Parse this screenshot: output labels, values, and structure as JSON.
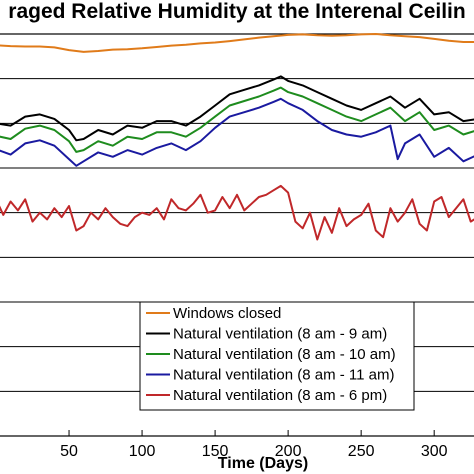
{
  "chart_data": {
    "type": "line",
    "title": "raged Relative Humidity at the Interenal Ceilin",
    "xlabel": "Time (Days)",
    "ylabel": "",
    "xlim": [
      0,
      330
    ],
    "ylim": [
      0,
      9
    ],
    "grid": "horizontal",
    "xticks": [
      50,
      100,
      150,
      200,
      250,
      300
    ],
    "xtick_labels": [
      "50",
      "100",
      "150",
      "200",
      "250",
      "300"
    ],
    "legend_position": "bottom-center",
    "series": [
      {
        "name": "Windows closed",
        "color": "#E07B1A",
        "x": [
          0,
          10,
          20,
          30,
          40,
          50,
          60,
          70,
          80,
          90,
          100,
          110,
          120,
          130,
          140,
          150,
          160,
          170,
          180,
          190,
          200,
          210,
          220,
          230,
          240,
          250,
          260,
          270,
          280,
          290,
          300,
          310,
          320,
          330
        ],
        "values": [
          8.75,
          8.73,
          8.72,
          8.72,
          8.7,
          8.64,
          8.6,
          8.62,
          8.65,
          8.66,
          8.68,
          8.71,
          8.74,
          8.76,
          8.79,
          8.81,
          8.84,
          8.88,
          8.92,
          8.95,
          8.98,
          8.99,
          8.97,
          8.96,
          8.97,
          8.99,
          9.0,
          8.97,
          8.95,
          8.93,
          8.89,
          8.85,
          8.82,
          8.82
        ]
      },
      {
        "name": "Natural ventilation (8 am - 9 am)",
        "color": "#000000",
        "x": [
          0,
          10,
          20,
          30,
          40,
          50,
          55,
          60,
          70,
          80,
          90,
          100,
          110,
          120,
          130,
          140,
          150,
          160,
          170,
          180,
          190,
          195,
          200,
          210,
          220,
          230,
          240,
          250,
          260,
          270,
          280,
          290,
          300,
          310,
          320,
          330
        ],
        "values": [
          7.0,
          6.95,
          7.15,
          7.2,
          7.1,
          6.85,
          6.62,
          6.65,
          6.85,
          6.75,
          6.95,
          6.9,
          7.05,
          7.05,
          6.95,
          7.15,
          7.4,
          7.65,
          7.75,
          7.85,
          7.98,
          8.05,
          7.95,
          7.85,
          7.7,
          7.55,
          7.4,
          7.3,
          7.45,
          7.6,
          7.35,
          7.55,
          7.2,
          7.25,
          7.05,
          7.1
        ]
      },
      {
        "name": "Natural ventilation (8 am - 10 am)",
        "color": "#1E8C1E",
        "x": [
          0,
          10,
          20,
          30,
          40,
          50,
          55,
          60,
          70,
          80,
          90,
          100,
          110,
          120,
          130,
          140,
          150,
          160,
          170,
          180,
          190,
          195,
          200,
          210,
          220,
          230,
          240,
          250,
          260,
          270,
          280,
          290,
          300,
          310,
          320,
          330
        ],
        "values": [
          6.72,
          6.65,
          6.88,
          6.95,
          6.85,
          6.6,
          6.36,
          6.4,
          6.6,
          6.5,
          6.7,
          6.65,
          6.8,
          6.8,
          6.7,
          6.9,
          7.15,
          7.4,
          7.5,
          7.6,
          7.73,
          7.8,
          7.7,
          7.6,
          7.45,
          7.3,
          7.15,
          7.05,
          7.2,
          7.35,
          7.05,
          7.25,
          6.85,
          6.95,
          6.75,
          6.85
        ]
      },
      {
        "name": "Natural ventilation (8 am - 11 am)",
        "color": "#1A1AA0",
        "x": [
          0,
          10,
          20,
          30,
          40,
          50,
          55,
          60,
          70,
          80,
          90,
          100,
          110,
          120,
          130,
          140,
          150,
          160,
          170,
          180,
          190,
          195,
          200,
          210,
          220,
          230,
          240,
          250,
          260,
          270,
          275,
          280,
          290,
          300,
          310,
          320,
          330
        ],
        "values": [
          6.42,
          6.3,
          6.55,
          6.62,
          6.5,
          6.2,
          6.05,
          6.15,
          6.35,
          6.25,
          6.4,
          6.3,
          6.45,
          6.55,
          6.4,
          6.6,
          6.9,
          7.15,
          7.25,
          7.35,
          7.48,
          7.55,
          7.45,
          7.3,
          7.05,
          6.85,
          6.75,
          6.7,
          6.8,
          6.95,
          6.2,
          6.55,
          6.75,
          6.25,
          6.45,
          6.15,
          6.3
        ]
      },
      {
        "name": "Natural ventilation (8 am - 6 pm)",
        "color": "#C0282A",
        "x": [
          0,
          5,
          10,
          15,
          20,
          25,
          30,
          35,
          40,
          45,
          50,
          55,
          60,
          65,
          70,
          75,
          80,
          85,
          90,
          95,
          100,
          105,
          110,
          115,
          120,
          125,
          130,
          135,
          140,
          145,
          150,
          155,
          160,
          165,
          170,
          175,
          180,
          185,
          190,
          195,
          200,
          205,
          210,
          215,
          220,
          225,
          230,
          235,
          240,
          245,
          250,
          255,
          260,
          265,
          270,
          275,
          280,
          285,
          290,
          295,
          300,
          305,
          310,
          315,
          320,
          325,
          330
        ],
        "values": [
          5.3,
          4.95,
          5.25,
          5.05,
          5.3,
          4.8,
          5.0,
          4.85,
          5.1,
          4.9,
          5.15,
          4.6,
          4.7,
          5.0,
          4.85,
          5.1,
          4.9,
          4.75,
          4.7,
          4.9,
          5.0,
          4.95,
          5.1,
          4.85,
          5.3,
          5.1,
          5.05,
          5.2,
          5.4,
          5.0,
          5.05,
          5.35,
          5.1,
          5.4,
          5.05,
          5.2,
          5.35,
          5.4,
          5.5,
          5.6,
          5.45,
          4.8,
          4.65,
          5.0,
          4.4,
          4.9,
          4.55,
          5.1,
          4.7,
          4.85,
          4.95,
          5.2,
          4.6,
          4.45,
          5.1,
          4.8,
          5.0,
          5.3,
          4.75,
          4.6,
          5.25,
          5.35,
          4.9,
          5.1,
          5.3,
          4.8,
          4.9
        ]
      }
    ]
  }
}
